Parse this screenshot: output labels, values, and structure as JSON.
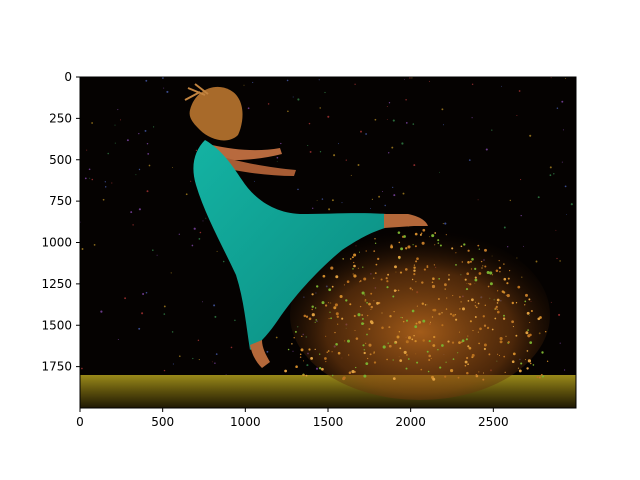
{
  "chart_data": {
    "type": "image",
    "title": "",
    "xlabel": "",
    "ylabel": "",
    "xlim": [
      0,
      3000
    ],
    "ylim": [
      2000,
      0
    ],
    "y_axis_inverted": true,
    "x_ticks": [
      0,
      500,
      1000,
      1500,
      2000,
      2500
    ],
    "y_ticks": [
      0,
      250,
      500,
      750,
      1000,
      1250,
      1500,
      1750
    ],
    "grid": false,
    "legend": "none"
  }
}
